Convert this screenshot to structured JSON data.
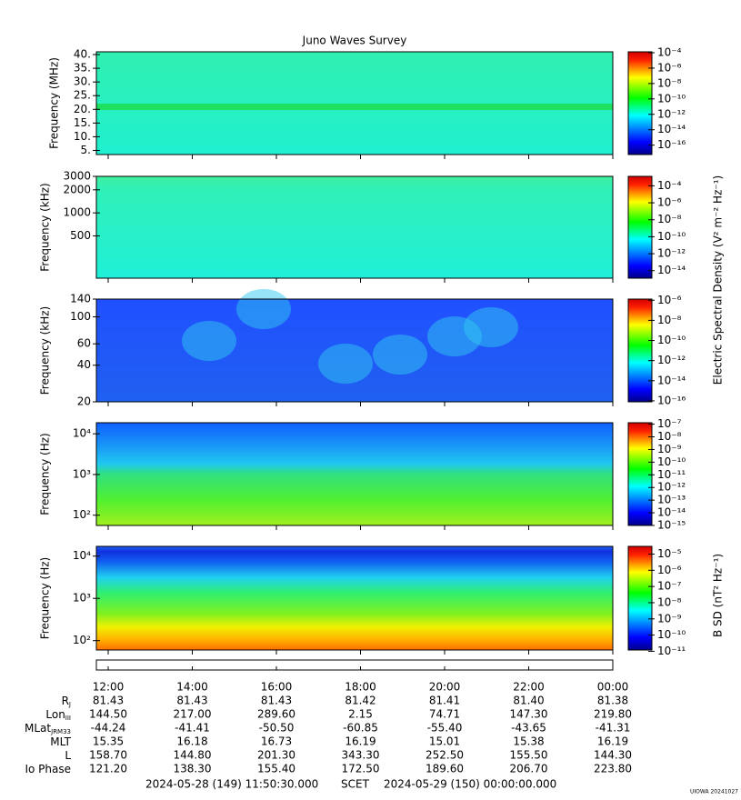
{
  "chart_data": {
    "type": "spectrogram",
    "title": "Juno Waves Survey",
    "panels": [
      {
        "ylabel": "Frequency (MHz)",
        "log": false,
        "ylim": [
          3.5,
          41
        ],
        "yticks": [
          {
            "value": 5,
            "label": "5."
          },
          {
            "value": 10,
            "label": "10."
          },
          {
            "value": 15,
            "label": "15."
          },
          {
            "value": 20,
            "label": "20."
          },
          {
            "value": 25,
            "label": "25."
          },
          {
            "value": 30,
            "label": "30."
          },
          {
            "value": 35,
            "label": "35."
          },
          {
            "value": 40,
            "label": "40."
          }
        ],
        "clim": [
          6e-18,
          0.00013
        ],
        "cticks": [
          {
            "value": 0.0001,
            "label": "10⁻⁴"
          },
          {
            "value": 1e-06,
            "label": "10⁻⁶"
          },
          {
            "value": 1e-08,
            "label": "10⁻⁸"
          },
          {
            "value": 1e-10,
            "label": "10⁻¹⁰"
          },
          {
            "value": 1e-12,
            "label": "10⁻¹²"
          },
          {
            "value": 1e-14,
            "label": "10⁻¹⁴"
          },
          {
            "value": 1e-16,
            "label": "10⁻¹⁶"
          }
        ]
      },
      {
        "ylabel": "Frequency (kHz)",
        "log": true,
        "ylim": [
          140,
          3000
        ],
        "yticks": [
          500,
          1000,
          2000,
          3000
        ],
        "clim": [
          1.3e-15,
          0.0013
        ],
        "cticks": [
          {
            "value": 0.0001,
            "label": "10⁻⁴"
          },
          {
            "value": 1e-06,
            "label": "10⁻⁶"
          },
          {
            "value": 1e-08,
            "label": "10⁻⁸"
          },
          {
            "value": 1e-10,
            "label": "10⁻¹⁰"
          },
          {
            "value": 1e-12,
            "label": "10⁻¹²"
          },
          {
            "value": 1e-14,
            "label": "10⁻¹⁴"
          }
        ]
      },
      {
        "ylabel": "Frequency (kHz)",
        "log": true,
        "ylim": [
          20,
          140
        ],
        "yticks": [
          20,
          40,
          60,
          100,
          140
        ],
        "clim": [
          8e-17,
          1.3e-06
        ],
        "cticks": [
          {
            "value": 1e-06,
            "label": "10⁻⁶"
          },
          {
            "value": 1e-08,
            "label": "10⁻⁸"
          },
          {
            "value": 1e-10,
            "label": "10⁻¹⁰"
          },
          {
            "value": 1e-12,
            "label": "10⁻¹²"
          },
          {
            "value": 1e-14,
            "label": "10⁻¹⁴"
          },
          {
            "value": 1e-16,
            "label": "10⁻¹⁶"
          }
        ]
      },
      {
        "ylabel": "Frequency (Hz)",
        "log": true,
        "ylim": [
          56,
          18700
        ],
        "yticks": [
          {
            "value": 100,
            "label": "10²"
          },
          {
            "value": 1000,
            "label": "10³"
          },
          {
            "value": 10000,
            "label": "10⁴"
          }
        ],
        "clim": [
          1e-15,
          1.3e-07
        ],
        "cticks": [
          {
            "value": 1e-07,
            "label": "10⁻⁷"
          },
          {
            "value": 1e-08,
            "label": "10⁻⁸"
          },
          {
            "value": 1e-09,
            "label": "10⁻⁹"
          },
          {
            "value": 1e-10,
            "label": "10⁻¹⁰"
          },
          {
            "value": 1e-11,
            "label": "10⁻¹¹"
          },
          {
            "value": 1e-12,
            "label": "10⁻¹²"
          },
          {
            "value": 1e-13,
            "label": "10⁻¹³"
          },
          {
            "value": 1e-14,
            "label": "10⁻¹⁴"
          },
          {
            "value": 1e-15,
            "label": "10⁻¹⁵"
          }
        ]
      },
      {
        "ylabel": "Frequency (Hz)",
        "log": true,
        "ylim": [
          60,
          17000
        ],
        "yticks": [
          {
            "value": 100,
            "label": "10²"
          },
          {
            "value": 1000,
            "label": "10³"
          },
          {
            "value": 10000,
            "label": "10⁴"
          }
        ],
        "clim": [
          1.2e-11,
          3e-05
        ],
        "cticks": [
          {
            "value": 1e-05,
            "label": "10⁻⁵"
          },
          {
            "value": 1e-06,
            "label": "10⁻⁶"
          },
          {
            "value": 1e-07,
            "label": "10⁻⁷"
          },
          {
            "value": 1e-08,
            "label": "10⁻⁸"
          },
          {
            "value": 1e-09,
            "label": "10⁻⁹"
          },
          {
            "value": 1e-10,
            "label": "10⁻¹⁰"
          },
          {
            "value": 1e-11,
            "label": "10⁻¹¹"
          }
        ]
      }
    ],
    "e_colorbar_label": "Electric Spectral Density (V² m⁻² Hz⁻¹)",
    "b_colorbar_label": "B SD (nT² Hz⁻¹)",
    "times": [
      "12:00",
      "14:00",
      "16:00",
      "18:00",
      "20:00",
      "22:00",
      "00:00"
    ],
    "rows": [
      {
        "label": "R",
        "sub": "J",
        "values": [
          "81.43",
          "81.43",
          "81.43",
          "81.42",
          "81.41",
          "81.40",
          "81.38"
        ]
      },
      {
        "label": "Lon",
        "sub": "III",
        "values": [
          "144.50",
          "217.00",
          "289.60",
          "2.15",
          "74.71",
          "147.30",
          "219.80"
        ]
      },
      {
        "label": "MLat",
        "sub": "JRM33",
        "values": [
          "-44.24",
          "-41.41",
          "-50.50",
          "-60.85",
          "-55.40",
          "-43.65",
          "-41.31"
        ]
      },
      {
        "label": "MLT",
        "values": [
          "15.35",
          "16.18",
          "16.73",
          "16.19",
          "15.01",
          "15.38",
          "16.19"
        ]
      },
      {
        "label": "L",
        "values": [
          "158.70",
          "144.80",
          "201.30",
          "343.30",
          "252.50",
          "155.50",
          "144.30"
        ]
      },
      {
        "label": "Io Phase",
        "values": [
          "121.20",
          "138.30",
          "155.40",
          "172.50",
          "189.60",
          "206.70",
          "223.80"
        ]
      }
    ],
    "start_time": "2024-05-28 (149) 11:50:30.000",
    "time_system": "SCET",
    "end_time": "2024-05-29 (150) 00:00:00.000",
    "credit": "UIOWA 20241027"
  }
}
